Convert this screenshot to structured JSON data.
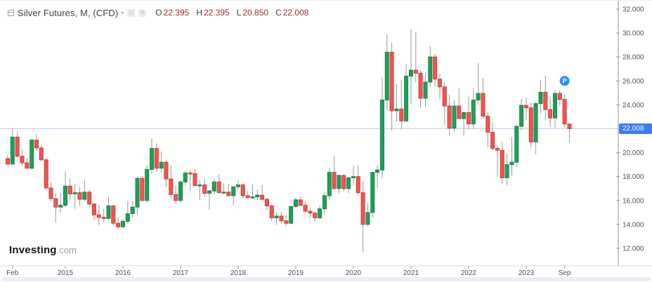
{
  "header": {
    "title": "Silver Futures, M, (CFD)",
    "ohlc": {
      "o_label": "O",
      "o": "22.395",
      "h_label": "H",
      "h": "22.395",
      "l_label": "L",
      "l": "20.850",
      "c_label": "C",
      "c": "22.008"
    }
  },
  "price_chip": {
    "label": "22.008"
  },
  "marker": {
    "label": "P",
    "month_index": 116,
    "price": 26.0
  },
  "logo": {
    "part1": "Invest",
    "dotless_i": "ı",
    "part2": "ng",
    "suffix": ".com"
  },
  "chart_data": {
    "type": "candlestick",
    "title": "Silver Futures, M, (CFD)",
    "timeframe": "Monthly",
    "start_month": "2014-01",
    "ylim": [
      12,
      32
    ],
    "current_price": 22.008,
    "y_ticks": [
      {
        "value": 32,
        "label": "32.000"
      },
      {
        "value": 30,
        "label": "30.000"
      },
      {
        "value": 28,
        "label": "28.000"
      },
      {
        "value": 26,
        "label": "26.000"
      },
      {
        "value": 24,
        "label": "24.000"
      },
      {
        "value": 20,
        "label": "20.000"
      },
      {
        "value": 18,
        "label": "18.000"
      },
      {
        "value": 16,
        "label": "16.000"
      },
      {
        "value": 14,
        "label": "14.000"
      },
      {
        "value": 12,
        "label": "12.000"
      }
    ],
    "x_ticks": [
      {
        "label": "Feb",
        "month_index": 1
      },
      {
        "label": "2015",
        "month_index": 12
      },
      {
        "label": "2016",
        "month_index": 24
      },
      {
        "label": "2017",
        "month_index": 36
      },
      {
        "label": "2018",
        "month_index": 48
      },
      {
        "label": "2019",
        "month_index": 60
      },
      {
        "label": "2020",
        "month_index": 72
      },
      {
        "label": "2021",
        "month_index": 84
      },
      {
        "label": "2022",
        "month_index": 96
      },
      {
        "label": "2023",
        "month_index": 108
      },
      {
        "label": "Sep",
        "month_index": 116
      }
    ],
    "candles": [
      [
        19.5,
        19.8,
        18.95,
        19.05
      ],
      [
        19.05,
        22.05,
        18.95,
        21.3
      ],
      [
        21.3,
        21.75,
        19.55,
        19.7
      ],
      [
        19.7,
        20.3,
        18.95,
        19.15
      ],
      [
        19.15,
        19.55,
        18.65,
        18.7
      ],
      [
        18.7,
        21.15,
        18.6,
        21.05
      ],
      [
        21.05,
        21.55,
        20.15,
        20.4
      ],
      [
        20.4,
        20.65,
        19.25,
        19.4
      ],
      [
        19.4,
        19.55,
        16.85,
        17.05
      ],
      [
        17.05,
        17.55,
        15.95,
        16.15
      ],
      [
        16.15,
        16.6,
        14.15,
        15.45
      ],
      [
        15.45,
        16.65,
        15.0,
        15.6
      ],
      [
        15.6,
        18.45,
        15.45,
        17.2
      ],
      [
        17.2,
        17.85,
        16.05,
        16.55
      ],
      [
        16.55,
        17.4,
        15.3,
        16.65
      ],
      [
        16.65,
        17.1,
        15.55,
        16.1
      ],
      [
        16.1,
        17.75,
        15.95,
        16.7
      ],
      [
        16.7,
        16.9,
        15.45,
        15.7
      ],
      [
        15.7,
        15.8,
        14.4,
        14.8
      ],
      [
        14.8,
        15.65,
        13.95,
        14.6
      ],
      [
        14.6,
        15.3,
        14.2,
        14.5
      ],
      [
        14.5,
        16.3,
        14.4,
        15.55
      ],
      [
        15.55,
        15.65,
        13.95,
        14.1
      ],
      [
        14.1,
        14.6,
        13.6,
        13.8
      ],
      [
        13.8,
        14.45,
        13.65,
        14.25
      ],
      [
        14.25,
        15.95,
        14.1,
        14.9
      ],
      [
        14.9,
        15.95,
        14.6,
        15.45
      ],
      [
        15.45,
        18.0,
        14.85,
        17.85
      ],
      [
        17.85,
        18.05,
        15.9,
        16.0
      ],
      [
        16.0,
        18.95,
        15.8,
        18.6
      ],
      [
        18.6,
        21.2,
        18.25,
        20.35
      ],
      [
        20.35,
        20.75,
        18.4,
        18.7
      ],
      [
        18.7,
        20.1,
        18.35,
        19.2
      ],
      [
        19.2,
        19.35,
        17.1,
        17.8
      ],
      [
        17.8,
        18.95,
        16.15,
        16.5
      ],
      [
        16.5,
        17.25,
        15.7,
        16.0
      ],
      [
        16.0,
        17.7,
        15.8,
        17.55
      ],
      [
        17.55,
        18.5,
        17.2,
        18.3
      ],
      [
        18.3,
        18.55,
        16.8,
        18.25
      ],
      [
        18.25,
        18.65,
        17.15,
        17.25
      ],
      [
        17.25,
        17.7,
        16.05,
        17.3
      ],
      [
        17.3,
        17.8,
        16.3,
        16.6
      ],
      [
        16.6,
        16.85,
        15.2,
        16.8
      ],
      [
        16.8,
        17.75,
        16.5,
        17.55
      ],
      [
        17.55,
        18.2,
        16.6,
        16.65
      ],
      [
        16.65,
        17.45,
        16.55,
        16.7
      ],
      [
        16.7,
        17.4,
        16.45,
        16.4
      ],
      [
        16.4,
        17.2,
        15.65,
        17.15
      ],
      [
        17.15,
        17.7,
        16.9,
        17.3
      ],
      [
        17.3,
        17.45,
        16.15,
        16.4
      ],
      [
        16.4,
        16.8,
        16.1,
        16.25
      ],
      [
        16.25,
        17.35,
        16.1,
        16.3
      ],
      [
        16.3,
        16.9,
        16.05,
        16.45
      ],
      [
        16.45,
        17.3,
        15.95,
        16.1
      ],
      [
        16.1,
        16.25,
        15.2,
        15.55
      ],
      [
        15.55,
        15.7,
        14.3,
        14.55
      ],
      [
        14.55,
        14.95,
        13.95,
        14.7
      ],
      [
        14.7,
        15.05,
        14.05,
        14.3
      ],
      [
        14.3,
        14.75,
        13.9,
        14.1
      ],
      [
        14.1,
        15.55,
        14.0,
        15.5
      ],
      [
        15.5,
        16.2,
        15.35,
        16.05
      ],
      [
        16.05,
        16.35,
        15.5,
        15.6
      ],
      [
        15.6,
        15.9,
        14.9,
        15.1
      ],
      [
        15.1,
        15.35,
        14.55,
        14.95
      ],
      [
        14.95,
        15.05,
        14.25,
        14.55
      ],
      [
        14.55,
        15.55,
        14.45,
        15.3
      ],
      [
        15.3,
        16.7,
        14.9,
        16.4
      ],
      [
        16.4,
        18.75,
        16.0,
        18.35
      ],
      [
        18.35,
        19.75,
        16.9,
        17.0
      ],
      [
        17.0,
        18.15,
        16.6,
        18.1
      ],
      [
        18.1,
        18.2,
        16.8,
        17.0
      ],
      [
        17.0,
        18.0,
        16.6,
        17.9
      ],
      [
        17.9,
        18.9,
        17.3,
        18.0
      ],
      [
        18.0,
        18.95,
        16.4,
        16.65
      ],
      [
        16.65,
        17.65,
        11.65,
        14.0
      ],
      [
        14.0,
        15.8,
        13.85,
        15.0
      ],
      [
        15.0,
        18.4,
        14.6,
        18.35
      ],
      [
        18.35,
        18.95,
        17.05,
        18.55
      ],
      [
        18.55,
        26.25,
        17.85,
        24.4
      ],
      [
        24.4,
        29.9,
        23.55,
        28.4
      ],
      [
        28.4,
        29.2,
        21.85,
        23.5
      ],
      [
        23.5,
        25.7,
        22.6,
        23.65
      ],
      [
        23.65,
        26.1,
        21.95,
        22.65
      ],
      [
        22.65,
        27.4,
        22.55,
        26.4
      ],
      [
        26.4,
        30.35,
        24.05,
        26.9
      ],
      [
        26.9,
        30.1,
        25.9,
        26.65
      ],
      [
        26.65,
        26.9,
        23.75,
        24.55
      ],
      [
        24.55,
        26.7,
        23.8,
        25.9
      ],
      [
        25.9,
        28.9,
        25.5,
        28.0
      ],
      [
        28.0,
        28.3,
        25.5,
        26.15
      ],
      [
        26.15,
        26.6,
        24.5,
        25.5
      ],
      [
        25.5,
        25.9,
        22.3,
        23.9
      ],
      [
        23.9,
        24.85,
        21.4,
        22.05
      ],
      [
        22.05,
        24.4,
        21.7,
        23.9
      ],
      [
        23.9,
        25.4,
        22.8,
        22.85
      ],
      [
        22.85,
        23.45,
        21.4,
        23.35
      ],
      [
        23.35,
        24.7,
        21.95,
        22.4
      ],
      [
        22.4,
        25.4,
        22.0,
        24.4
      ],
      [
        24.4,
        27.5,
        24.0,
        24.95
      ],
      [
        24.95,
        26.25,
        22.8,
        23.05
      ],
      [
        23.05,
        23.4,
        20.45,
        21.7
      ],
      [
        21.7,
        22.5,
        20.2,
        20.35
      ],
      [
        20.35,
        20.6,
        18.0,
        20.2
      ],
      [
        20.2,
        20.9,
        17.4,
        17.9
      ],
      [
        17.9,
        19.9,
        17.3,
        19.0
      ],
      [
        19.0,
        21.3,
        18.1,
        19.2
      ],
      [
        19.2,
        22.3,
        18.8,
        22.2
      ],
      [
        22.2,
        24.5,
        21.9,
        23.95
      ],
      [
        23.95,
        24.6,
        22.75,
        23.75
      ],
      [
        23.75,
        24.2,
        20.4,
        20.9
      ],
      [
        20.9,
        24.2,
        19.9,
        24.1
      ],
      [
        24.1,
        26.1,
        23.3,
        25.05
      ],
      [
        25.05,
        26.45,
        22.7,
        23.6
      ],
      [
        23.6,
        24.55,
        22.15,
        22.9
      ],
      [
        22.9,
        25.25,
        22.1,
        24.95
      ],
      [
        24.95,
        25.15,
        23.9,
        24.45
      ],
      [
        24.45,
        24.85,
        22.1,
        22.4
      ],
      [
        22.395,
        22.395,
        20.85,
        22.008
      ]
    ],
    "colors": {
      "up_fill": "#1fa05a",
      "up_stroke": "#17854a",
      "down_fill": "#f25551",
      "down_stroke": "#d23a38",
      "wick": "#8aa098",
      "price_line": "#b9cdea",
      "price_chip_bg": "#3d7bfb",
      "marker": "#2196f3",
      "axis_line": "#9297a0",
      "bottom_line": "#d6d9de",
      "tick_text": "#4c5058"
    },
    "legend_position": "none",
    "grid": false
  }
}
